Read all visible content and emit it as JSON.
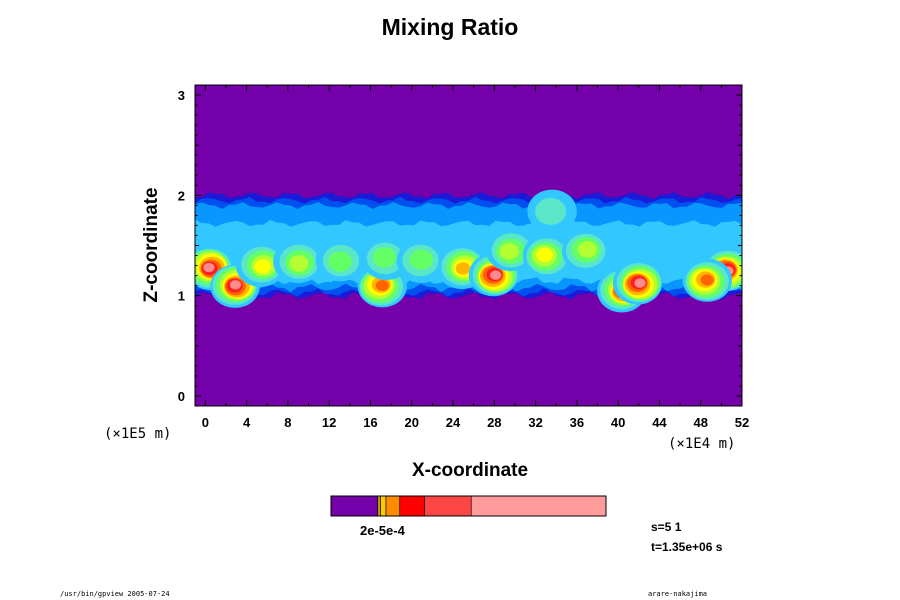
{
  "chart_data": {
    "type": "heatmap",
    "title": "Mixing Ratio",
    "xlabel": "X-coordinate",
    "ylabel": "Z-coordinate",
    "x_scale_label": "(×1E4 m)",
    "y_scale_label": "(×1E5 m)",
    "xlim": [
      -1,
      52
    ],
    "ylim": [
      -0.1,
      3.1
    ],
    "x_ticks": [
      "0",
      "4",
      "8",
      "12",
      "16",
      "20",
      "24",
      "28",
      "32",
      "36",
      "40",
      "44",
      "48",
      "52"
    ],
    "y_ticks": [
      "0",
      "1",
      "2",
      "3"
    ],
    "background_color": "#7300a8",
    "layer": {
      "z_bottom": 1.0,
      "z_top": 2.0
    },
    "layer_colors": [
      "#1a1ad8",
      "#0050f0",
      "#0a96ff",
      "#32c8ff",
      "#5ae6c8",
      "#64ff64",
      "#b4ff32",
      "#ffff00",
      "#ffb400",
      "#ff6400",
      "#ff1e1e",
      "#ff8c8c"
    ],
    "blobs": [
      {
        "x": 0.5,
        "z": 1.28,
        "peak": 11
      },
      {
        "x": 3.0,
        "z": 1.1,
        "peak": 11
      },
      {
        "x": 5.5,
        "z": 1.3,
        "peak": 7
      },
      {
        "x": 9.0,
        "z": 1.33,
        "peak": 6
      },
      {
        "x": 13.0,
        "z": 1.35,
        "peak": 5
      },
      {
        "x": 17.0,
        "z": 1.1,
        "peak": 9
      },
      {
        "x": 17.5,
        "z": 1.38,
        "peak": 5
      },
      {
        "x": 21.0,
        "z": 1.35,
        "peak": 5
      },
      {
        "x": 25.0,
        "z": 1.28,
        "peak": 8
      },
      {
        "x": 28.0,
        "z": 1.2,
        "peak": 11
      },
      {
        "x": 29.5,
        "z": 1.45,
        "peak": 6
      },
      {
        "x": 33.0,
        "z": 1.4,
        "peak": 7
      },
      {
        "x": 33.5,
        "z": 1.85,
        "peak": 4
      },
      {
        "x": 37.0,
        "z": 1.45,
        "peak": 6
      },
      {
        "x": 40.5,
        "z": 1.05,
        "peak": 10
      },
      {
        "x": 42.0,
        "z": 1.12,
        "peak": 11
      },
      {
        "x": 50.5,
        "z": 1.25,
        "peak": 11
      },
      {
        "x": 48.5,
        "z": 1.15,
        "peak": 9
      }
    ],
    "colorbar": {
      "colors": [
        "#7300a8",
        "#b4a000",
        "#ffc800",
        "#ff8c00",
        "#ff0000",
        "#ff4646",
        "#ff9b9b"
      ],
      "fractions": [
        0.17,
        0.01,
        0.02,
        0.05,
        0.09,
        0.17,
        0.49
      ],
      "labels": "2e-5e-4"
    }
  },
  "info": {
    "s": "s=5 1",
    "t": "t=1.35e+06 s"
  },
  "footer": {
    "left": "/usr/bin/gpview 2005-07-24",
    "right": "arare-nakajima"
  }
}
